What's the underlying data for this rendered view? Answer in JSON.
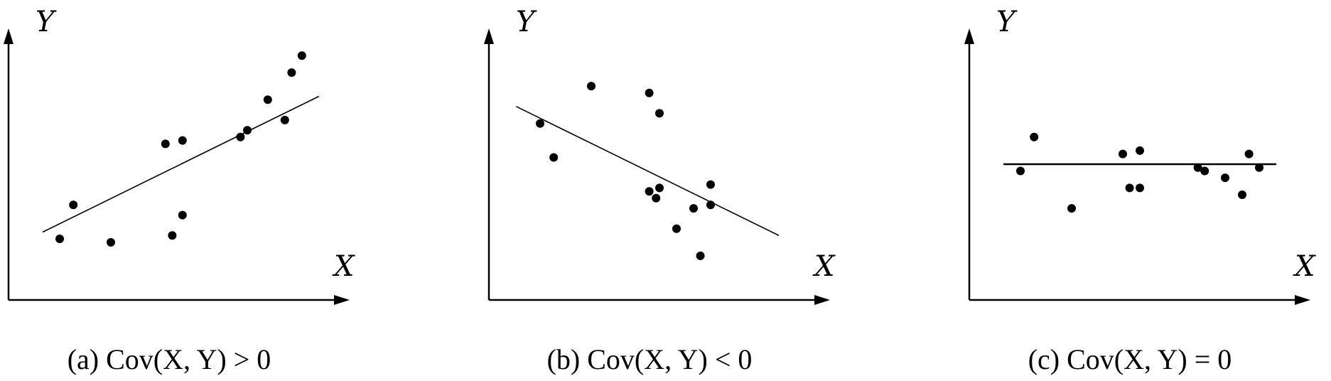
{
  "chart_data": [
    {
      "type": "scatter",
      "caption": "(a)  Cov(X, Y) > 0",
      "xlabel": "X",
      "ylabel": "Y",
      "xlim": [
        0,
        10
      ],
      "ylim": [
        0,
        8
      ],
      "grid": false,
      "points": [
        {
          "x": 1.5,
          "y": 1.8
        },
        {
          "x": 1.9,
          "y": 2.8
        },
        {
          "x": 3.0,
          "y": 1.7
        },
        {
          "x": 4.6,
          "y": 4.6
        },
        {
          "x": 4.8,
          "y": 1.9
        },
        {
          "x": 5.1,
          "y": 4.7
        },
        {
          "x": 5.1,
          "y": 2.5
        },
        {
          "x": 6.8,
          "y": 4.8
        },
        {
          "x": 7.0,
          "y": 5.0
        },
        {
          "x": 7.6,
          "y": 5.9
        },
        {
          "x": 8.1,
          "y": 5.3
        },
        {
          "x": 8.3,
          "y": 6.7
        },
        {
          "x": 8.6,
          "y": 7.2
        }
      ],
      "trend_line": {
        "x": [
          1.0,
          9.1
        ],
        "y": [
          2.0,
          6.0
        ]
      }
    },
    {
      "type": "scatter",
      "caption": "(b)  Cov(X, Y) < 0",
      "xlabel": "X",
      "ylabel": "Y",
      "xlim": [
        0,
        10
      ],
      "ylim": [
        0,
        8
      ],
      "grid": false,
      "points": [
        {
          "x": 1.5,
          "y": 5.2
        },
        {
          "x": 1.9,
          "y": 4.2
        },
        {
          "x": 3.0,
          "y": 6.3
        },
        {
          "x": 4.7,
          "y": 6.1
        },
        {
          "x": 5.0,
          "y": 5.5
        },
        {
          "x": 4.7,
          "y": 3.2
        },
        {
          "x": 4.9,
          "y": 3.0
        },
        {
          "x": 5.0,
          "y": 3.3
        },
        {
          "x": 5.5,
          "y": 2.1
        },
        {
          "x": 6.0,
          "y": 2.7
        },
        {
          "x": 6.2,
          "y": 1.3
        },
        {
          "x": 6.5,
          "y": 3.4
        },
        {
          "x": 6.5,
          "y": 2.8
        }
      ],
      "trend_line": {
        "x": [
          0.8,
          8.5
        ],
        "y": [
          5.7,
          1.9
        ]
      }
    },
    {
      "type": "scatter",
      "caption": "(c)  Cov(X, Y) = 0",
      "xlabel": "X",
      "ylabel": "Y",
      "xlim": [
        0,
        10
      ],
      "ylim": [
        0,
        8
      ],
      "grid": false,
      "points": [
        {
          "x": 1.5,
          "y": 3.8
        },
        {
          "x": 1.9,
          "y": 4.8
        },
        {
          "x": 3.0,
          "y": 2.7
        },
        {
          "x": 4.5,
          "y": 4.3
        },
        {
          "x": 4.7,
          "y": 3.3
        },
        {
          "x": 5.0,
          "y": 4.4
        },
        {
          "x": 5.0,
          "y": 3.3
        },
        {
          "x": 6.7,
          "y": 3.9
        },
        {
          "x": 6.9,
          "y": 3.8
        },
        {
          "x": 7.5,
          "y": 3.6
        },
        {
          "x": 8.0,
          "y": 3.1
        },
        {
          "x": 8.2,
          "y": 4.3
        },
        {
          "x": 8.5,
          "y": 3.9
        }
      ],
      "trend_line": {
        "x": [
          1.0,
          9.0
        ],
        "y": [
          4.0,
          4.0
        ]
      }
    }
  ]
}
